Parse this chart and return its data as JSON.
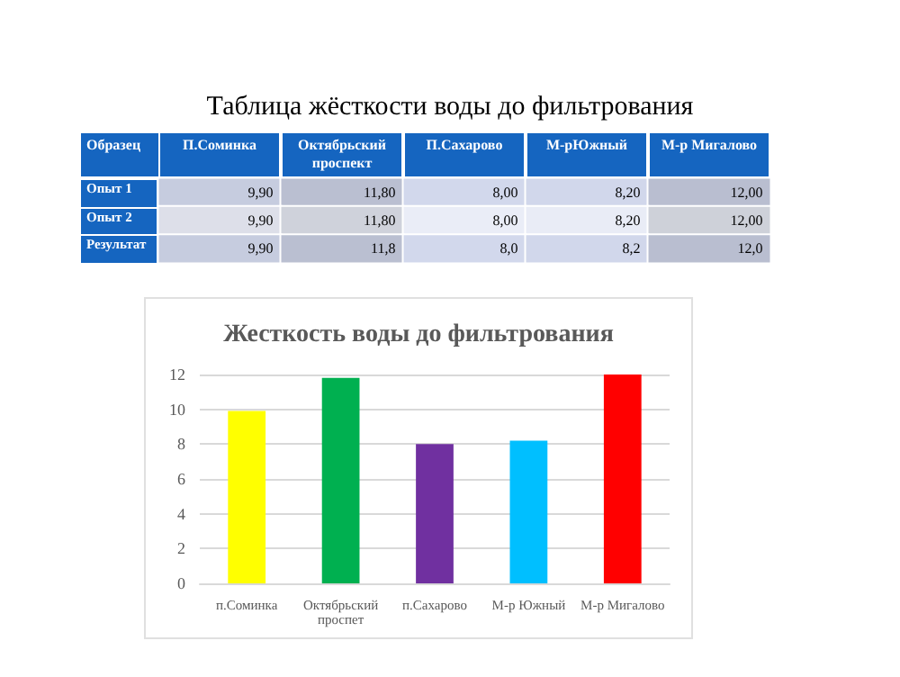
{
  "chart_data": [
    {
      "type": "heatmap",
      "title": "Таблица жёсткости воды до фильтрования",
      "ylabel": "Образец",
      "categories": [
        "П.Соминка",
        "Октябрьский проспект",
        "П.Сахарово",
        "М-рЮжный",
        "М-р Мигалово"
      ],
      "y_categories": [
        "Опыт 1",
        "Опыт 2",
        "Результат"
      ],
      "cells": [
        [
          9.9,
          11.8,
          8.0,
          8.2,
          12.0
        ],
        [
          9.9,
          11.8,
          8.0,
          8.2,
          12.0
        ],
        [
          9.9,
          11.8,
          8.0,
          8.2,
          12.0
        ]
      ],
      "cell_labels": [
        [
          "9,90",
          "11,80",
          "8,00",
          "8,20",
          "12,00"
        ],
        [
          "9,90",
          "11,80",
          "8,00",
          "8,20",
          "12,00"
        ],
        [
          "9,90",
          "11,8",
          "8,0",
          "8,2",
          "12,0"
        ]
      ]
    },
    {
      "type": "bar",
      "title": "Жесткость воды до фильтрования",
      "categories": [
        "п.Соминка",
        "Октябрьский проспет",
        "п.Сахарово",
        "М-р Южный",
        "М-р Мигалово"
      ],
      "values": [
        9.9,
        11.8,
        8.0,
        8.2,
        12.0
      ],
      "colors": [
        "#ffff00",
        "#00b050",
        "#7030a0",
        "#00bfff",
        "#ff0000"
      ],
      "ylim": [
        0,
        12
      ],
      "yticks": [
        0,
        2,
        4,
        6,
        8,
        10,
        12
      ],
      "grid": "y"
    }
  ]
}
